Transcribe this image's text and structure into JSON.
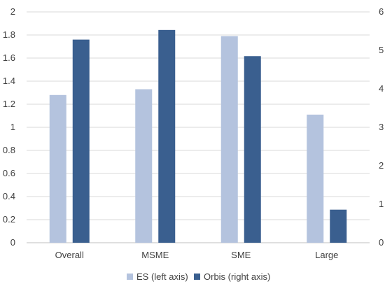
{
  "chart_data": {
    "type": "bar",
    "categories": [
      "Overall",
      "MSME",
      "SME",
      "Large"
    ],
    "series": [
      {
        "name": "ES (left axis)",
        "axis": "left",
        "color": "#b4c3de",
        "values": [
          1.28,
          1.33,
          1.79,
          1.11
        ]
      },
      {
        "name": "Orbis (right axis)",
        "axis": "right",
        "color": "#3a5f8f",
        "values": [
          5.28,
          5.53,
          4.85,
          0.86
        ]
      }
    ],
    "left_axis": {
      "ylim": [
        0,
        2
      ],
      "ticks": [
        "0",
        "0.2",
        "0.4",
        "0.6",
        "0.8",
        "1",
        "1.2",
        "1.4",
        "1.6",
        "1.8",
        "2"
      ]
    },
    "right_axis": {
      "ylim": [
        0,
        6
      ],
      "ticks": [
        "0",
        "1",
        "2",
        "3",
        "4",
        "5",
        "6"
      ]
    },
    "grid": true,
    "legend_position": "bottom"
  }
}
